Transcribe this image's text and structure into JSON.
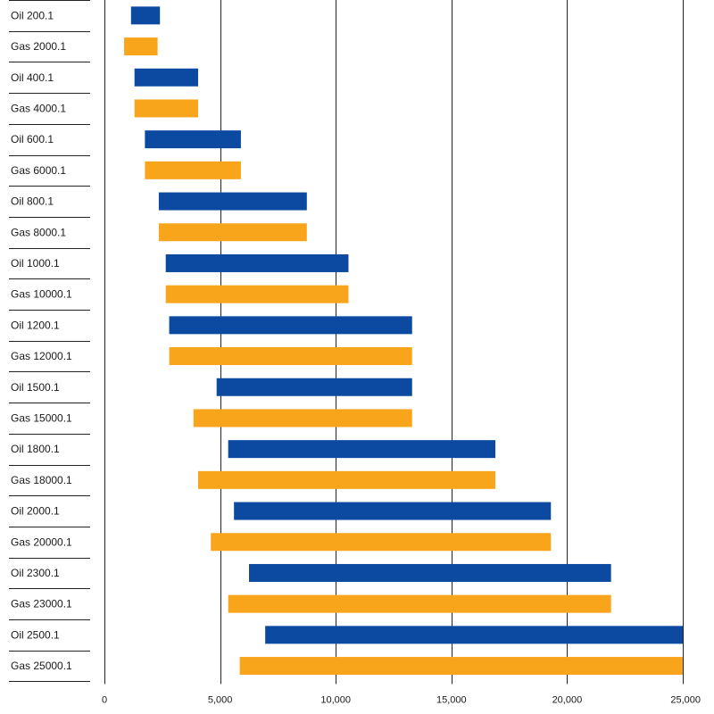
{
  "chart_data": {
    "type": "bar",
    "orientation": "horizontal",
    "style": "floating-range",
    "categories": [
      "Oil 200.1",
      "Gas 2000.1",
      "Oil 400.1",
      "Gas 4000.1",
      "Oil 600.1",
      "Gas 6000.1",
      "Oil 800.1",
      "Gas 8000.1",
      "Oil 1000.1",
      "Gas 10000.1",
      "Oil 1200.1",
      "Gas 12000.1",
      "Oil 1500.1",
      "Gas 15000.1",
      "Oil 1800.1",
      "Gas 18000.1",
      "Oil 2000.1",
      "Gas 20000.1",
      "Oil 2300.1",
      "Gas 23000.1",
      "Oil 2500.1",
      "Gas 25000.1"
    ],
    "ranges": [
      [
        1150,
        2400
      ],
      [
        850,
        2300
      ],
      [
        1300,
        4050
      ],
      [
        1300,
        4050
      ],
      [
        1750,
        5900
      ],
      [
        1750,
        5900
      ],
      [
        2350,
        8750
      ],
      [
        2350,
        8750
      ],
      [
        2650,
        10550
      ],
      [
        2650,
        10550
      ],
      [
        2800,
        13300
      ],
      [
        2800,
        13300
      ],
      [
        4850,
        13300
      ],
      [
        3850,
        13300
      ],
      [
        5350,
        16900
      ],
      [
        4050,
        16900
      ],
      [
        5600,
        19300
      ],
      [
        4600,
        19300
      ],
      [
        6250,
        21900
      ],
      [
        5350,
        21900
      ],
      [
        6950,
        25000
      ],
      [
        5850,
        25000
      ]
    ],
    "colors": {
      "oil": "#0b4aa0",
      "gas": "#f9a51b"
    },
    "xlim": [
      0,
      25000
    ],
    "xticks": [
      0,
      5000,
      10000,
      15000,
      20000,
      25000
    ],
    "xtick_labels": [
      "0",
      "5,000",
      "10,000",
      "15,000",
      "20,000",
      "25,000"
    ],
    "grid": "vertical"
  }
}
